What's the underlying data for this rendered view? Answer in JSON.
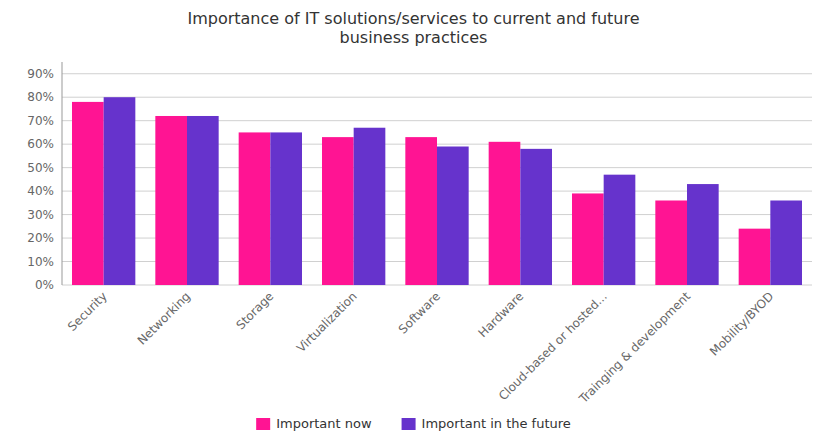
{
  "chart_data": {
    "type": "bar",
    "title": "Importance of IT solutions/services to current and future\nbusiness practices",
    "categories": [
      "Security",
      "Networking",
      "Storage",
      "Virtualization",
      "Software",
      "Hardware",
      "Cloud-based or hosted...",
      "Trainging & development",
      "Mobility/BYOD"
    ],
    "series": [
      {
        "name": "Important now",
        "color": "#FF1493",
        "values": [
          0.78,
          0.72,
          0.65,
          0.63,
          0.63,
          0.61,
          0.39,
          0.36,
          0.24
        ]
      },
      {
        "name": "Important in the future",
        "color": "#6633CC",
        "values": [
          0.8,
          0.72,
          0.65,
          0.67,
          0.59,
          0.58,
          0.47,
          0.43,
          0.36
        ]
      }
    ],
    "ylim": [
      0,
      0.95
    ],
    "yticks": [
      {
        "value": 0,
        "label": "0%"
      },
      {
        "value": 0.1,
        "label": "10%"
      },
      {
        "value": 0.2,
        "label": "20%"
      },
      {
        "value": 0.3,
        "label": "30%"
      },
      {
        "value": 0.4,
        "label": "40%"
      },
      {
        "value": 0.5,
        "label": "50%"
      },
      {
        "value": 0.6,
        "label": "60%"
      },
      {
        "value": 0.7,
        "label": "70%"
      },
      {
        "value": 0.8,
        "label": "80%"
      },
      {
        "value": 0.9,
        "label": "90%"
      }
    ],
    "grid": true,
    "legend": "bottom"
  }
}
